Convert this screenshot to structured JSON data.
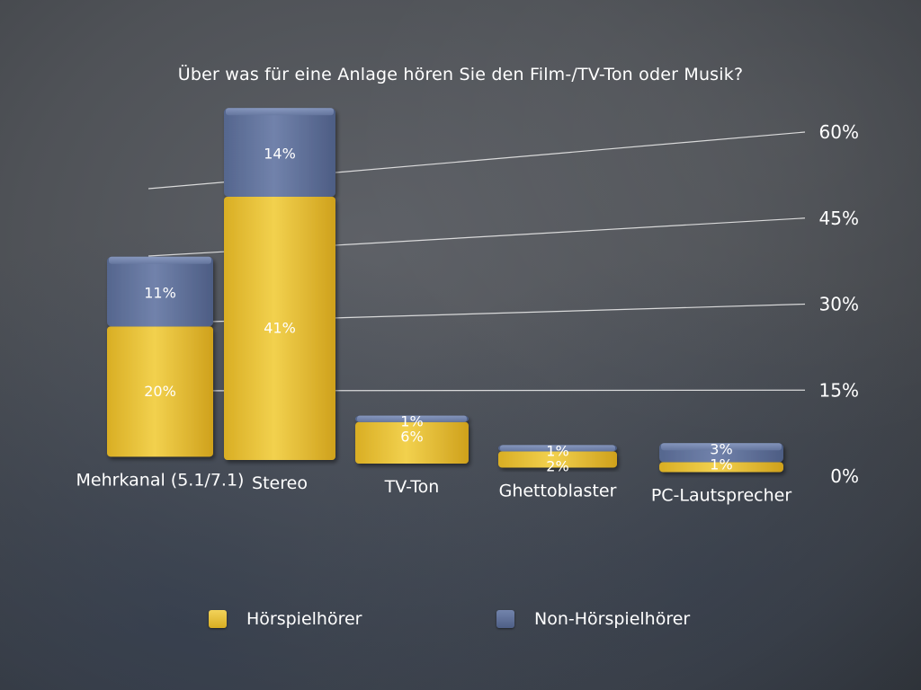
{
  "colors": {
    "hoerspiel": "#e8c23b",
    "non_hoerspiel": "#5e6f96",
    "text": "#ffffff"
  },
  "chart_data": {
    "type": "bar",
    "stacked": true,
    "title": "Über was für eine Anlage hören Sie den Film-/TV-Ton oder Musik?",
    "categories": [
      "Mehrkanal (5.1/7.1)",
      "Stereo",
      "TV-Ton",
      "Ghettoblaster",
      "PC-Lautsprecher"
    ],
    "series": [
      {
        "name": "Hörspielhörer",
        "values": [
          20,
          41,
          6,
          2,
          1
        ],
        "labels": [
          "20%",
          "41%",
          "6%",
          "2%",
          "1%"
        ]
      },
      {
        "name": "Non-Hörspielhörer",
        "values": [
          11,
          14,
          1,
          1,
          3
        ],
        "labels": [
          "11%",
          "14%",
          "1%",
          "1%",
          "3%"
        ]
      }
    ],
    "y_ticks": [
      "0%",
      "15%",
      "30%",
      "45%",
      "60%"
    ],
    "y_tick_values": [
      0,
      15,
      30,
      45,
      60
    ],
    "ylim": [
      0,
      60
    ],
    "grid": true,
    "legend_position": "bottom"
  }
}
